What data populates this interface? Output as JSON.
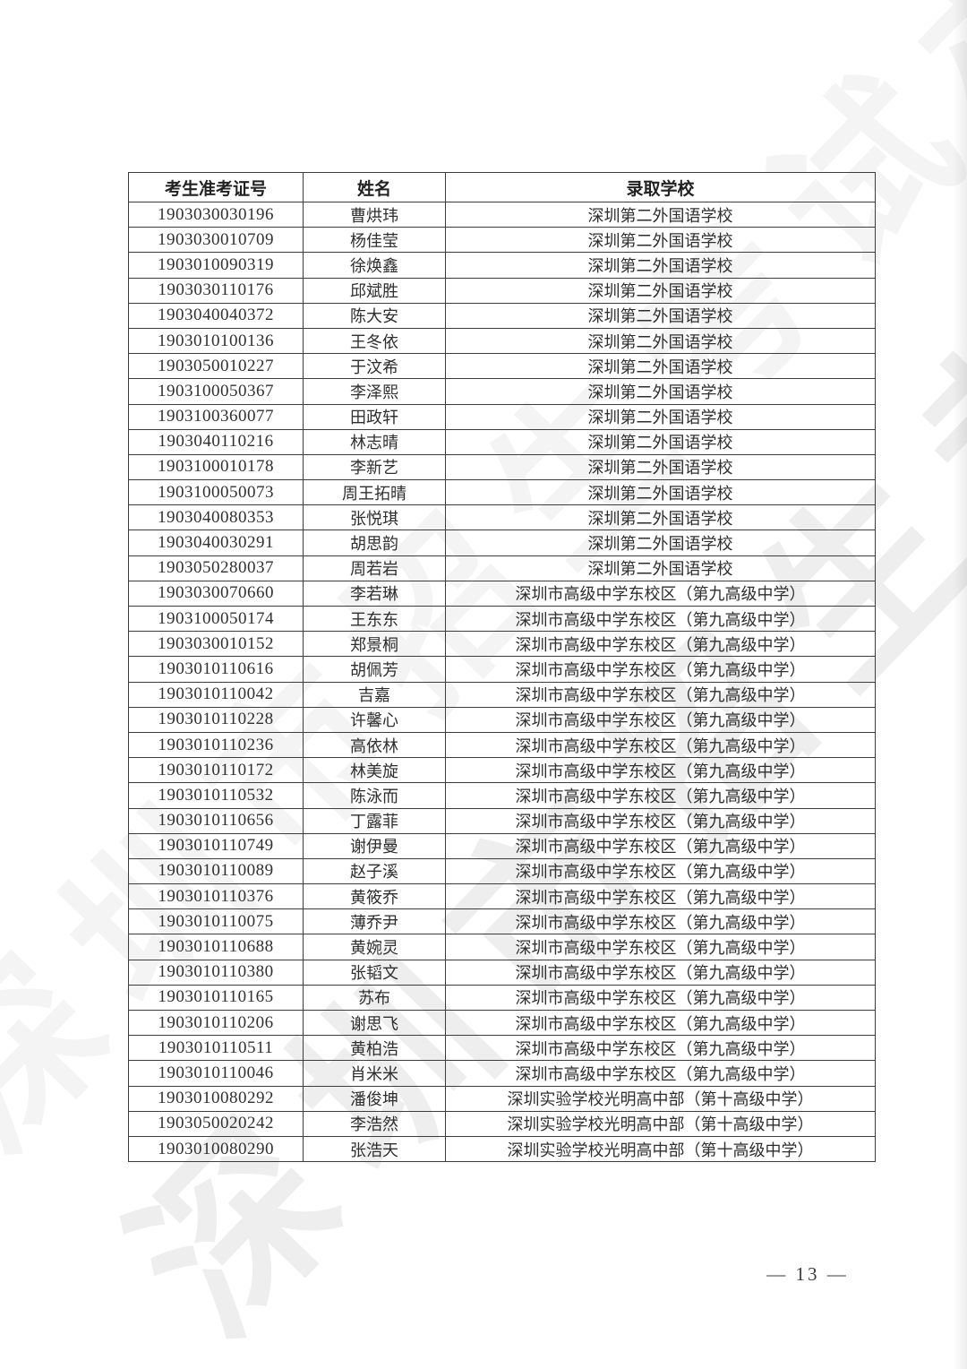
{
  "table": {
    "columns": [
      "考生准考证号",
      "姓名",
      "录取学校"
    ],
    "rows": [
      {
        "exam_number": "1903030030196",
        "name": "曹烘玮",
        "school": "深圳第二外国语学校"
      },
      {
        "exam_number": "1903030010709",
        "name": "杨佳莹",
        "school": "深圳第二外国语学校"
      },
      {
        "exam_number": "1903010090319",
        "name": "徐焕鑫",
        "school": "深圳第二外国语学校"
      },
      {
        "exam_number": "1903030110176",
        "name": "邱斌胜",
        "school": "深圳第二外国语学校"
      },
      {
        "exam_number": "1903040040372",
        "name": "陈大安",
        "school": "深圳第二外国语学校"
      },
      {
        "exam_number": "1903010100136",
        "name": "王冬依",
        "school": "深圳第二外国语学校"
      },
      {
        "exam_number": "1903050010227",
        "name": "于汶希",
        "school": "深圳第二外国语学校"
      },
      {
        "exam_number": "1903100050367",
        "name": "李泽熙",
        "school": "深圳第二外国语学校"
      },
      {
        "exam_number": "1903100360077",
        "name": "田政轩",
        "school": "深圳第二外国语学校"
      },
      {
        "exam_number": "1903040110216",
        "name": "林志晴",
        "school": "深圳第二外国语学校"
      },
      {
        "exam_number": "1903100010178",
        "name": "李新艺",
        "school": "深圳第二外国语学校"
      },
      {
        "exam_number": "1903100050073",
        "name": "周王拓晴",
        "school": "深圳第二外国语学校"
      },
      {
        "exam_number": "1903040080353",
        "name": "张悦琪",
        "school": "深圳第二外国语学校"
      },
      {
        "exam_number": "1903040030291",
        "name": "胡思韵",
        "school": "深圳第二外国语学校"
      },
      {
        "exam_number": "1903050280037",
        "name": "周若岩",
        "school": "深圳第二外国语学校"
      },
      {
        "exam_number": "1903030070660",
        "name": "李若琳",
        "school": "深圳市高级中学东校区（第九高级中学）"
      },
      {
        "exam_number": "1903100050174",
        "name": "王东东",
        "school": "深圳市高级中学东校区（第九高级中学）"
      },
      {
        "exam_number": "1903030010152",
        "name": "郑景桐",
        "school": "深圳市高级中学东校区（第九高级中学）"
      },
      {
        "exam_number": "1903010110616",
        "name": "胡佩芳",
        "school": "深圳市高级中学东校区（第九高级中学）"
      },
      {
        "exam_number": "1903010110042",
        "name": "吉嘉",
        "school": "深圳市高级中学东校区（第九高级中学）"
      },
      {
        "exam_number": "1903010110228",
        "name": "许馨心",
        "school": "深圳市高级中学东校区（第九高级中学）"
      },
      {
        "exam_number": "1903010110236",
        "name": "高依林",
        "school": "深圳市高级中学东校区（第九高级中学）"
      },
      {
        "exam_number": "1903010110172",
        "name": "林美旋",
        "school": "深圳市高级中学东校区（第九高级中学）"
      },
      {
        "exam_number": "1903010110532",
        "name": "陈泳而",
        "school": "深圳市高级中学东校区（第九高级中学）"
      },
      {
        "exam_number": "1903010110656",
        "name": "丁露菲",
        "school": "深圳市高级中学东校区（第九高级中学）"
      },
      {
        "exam_number": "1903010110749",
        "name": "谢伊曼",
        "school": "深圳市高级中学东校区（第九高级中学）"
      },
      {
        "exam_number": "1903010110089",
        "name": "赵子溪",
        "school": "深圳市高级中学东校区（第九高级中学）"
      },
      {
        "exam_number": "1903010110376",
        "name": "黄筱乔",
        "school": "深圳市高级中学东校区（第九高级中学）"
      },
      {
        "exam_number": "1903010110075",
        "name": "薄乔尹",
        "school": "深圳市高级中学东校区（第九高级中学）"
      },
      {
        "exam_number": "1903010110688",
        "name": "黄婉灵",
        "school": "深圳市高级中学东校区（第九高级中学）"
      },
      {
        "exam_number": "1903010110380",
        "name": "张韬文",
        "school": "深圳市高级中学东校区（第九高级中学）"
      },
      {
        "exam_number": "1903010110165",
        "name": "苏布",
        "school": "深圳市高级中学东校区（第九高级中学）"
      },
      {
        "exam_number": "1903010110206",
        "name": "谢思飞",
        "school": "深圳市高级中学东校区（第九高级中学）"
      },
      {
        "exam_number": "1903010110511",
        "name": "黄柏浩",
        "school": "深圳市高级中学东校区（第九高级中学）"
      },
      {
        "exam_number": "1903010110046",
        "name": "肖米米",
        "school": "深圳市高级中学东校区（第九高级中学）"
      },
      {
        "exam_number": "1903010080292",
        "name": "潘俊坤",
        "school": "深圳实验学校光明高中部（第十高级中学）"
      },
      {
        "exam_number": "1903050020242",
        "name": "李浩然",
        "school": "深圳实验学校光明高中部（第十高级中学）"
      },
      {
        "exam_number": "1903010080290",
        "name": "张浩天",
        "school": "深圳实验学校光明高中部（第十高级中学）"
      }
    ]
  },
  "footer": {
    "page_label": "— 13 —",
    "page_number": "13"
  },
  "watermark": {
    "text": "深圳市招生考试办公室"
  },
  "colors": {
    "page_bg": "#ffffff",
    "border": "#3c3c3c",
    "text": "#2b2b2b",
    "watermark": "#d4d4d4"
  }
}
